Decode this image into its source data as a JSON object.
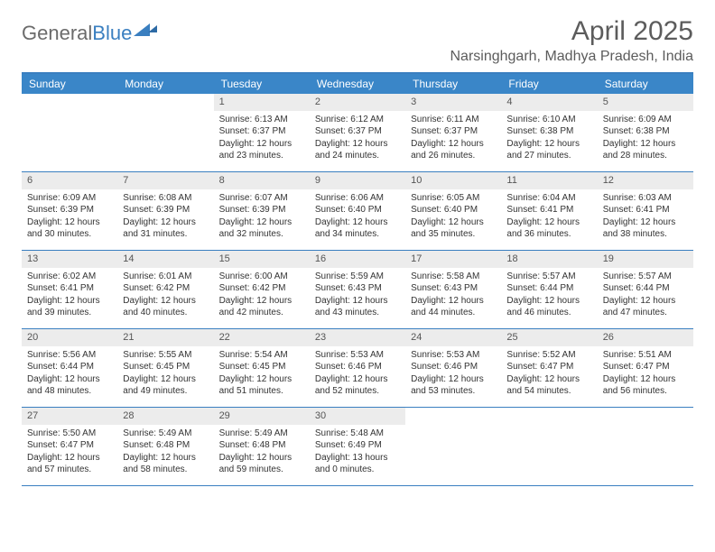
{
  "logo": {
    "text1": "General",
    "text2": "Blue"
  },
  "title": "April 2025",
  "location": "Narsinghgarh, Madhya Pradesh, India",
  "colors": {
    "header_bg": "#3a86c8",
    "border": "#3a7fc0",
    "daynum_bg": "#ececec"
  },
  "weekdays": [
    "Sunday",
    "Monday",
    "Tuesday",
    "Wednesday",
    "Thursday",
    "Friday",
    "Saturday"
  ],
  "weeks": [
    [
      null,
      null,
      {
        "n": "1",
        "sr": "6:13 AM",
        "ss": "6:37 PM",
        "dl": "12 hours and 23 minutes."
      },
      {
        "n": "2",
        "sr": "6:12 AM",
        "ss": "6:37 PM",
        "dl": "12 hours and 24 minutes."
      },
      {
        "n": "3",
        "sr": "6:11 AM",
        "ss": "6:37 PM",
        "dl": "12 hours and 26 minutes."
      },
      {
        "n": "4",
        "sr": "6:10 AM",
        "ss": "6:38 PM",
        "dl": "12 hours and 27 minutes."
      },
      {
        "n": "5",
        "sr": "6:09 AM",
        "ss": "6:38 PM",
        "dl": "12 hours and 28 minutes."
      }
    ],
    [
      {
        "n": "6",
        "sr": "6:09 AM",
        "ss": "6:39 PM",
        "dl": "12 hours and 30 minutes."
      },
      {
        "n": "7",
        "sr": "6:08 AM",
        "ss": "6:39 PM",
        "dl": "12 hours and 31 minutes."
      },
      {
        "n": "8",
        "sr": "6:07 AM",
        "ss": "6:39 PM",
        "dl": "12 hours and 32 minutes."
      },
      {
        "n": "9",
        "sr": "6:06 AM",
        "ss": "6:40 PM",
        "dl": "12 hours and 34 minutes."
      },
      {
        "n": "10",
        "sr": "6:05 AM",
        "ss": "6:40 PM",
        "dl": "12 hours and 35 minutes."
      },
      {
        "n": "11",
        "sr": "6:04 AM",
        "ss": "6:41 PM",
        "dl": "12 hours and 36 minutes."
      },
      {
        "n": "12",
        "sr": "6:03 AM",
        "ss": "6:41 PM",
        "dl": "12 hours and 38 minutes."
      }
    ],
    [
      {
        "n": "13",
        "sr": "6:02 AM",
        "ss": "6:41 PM",
        "dl": "12 hours and 39 minutes."
      },
      {
        "n": "14",
        "sr": "6:01 AM",
        "ss": "6:42 PM",
        "dl": "12 hours and 40 minutes."
      },
      {
        "n": "15",
        "sr": "6:00 AM",
        "ss": "6:42 PM",
        "dl": "12 hours and 42 minutes."
      },
      {
        "n": "16",
        "sr": "5:59 AM",
        "ss": "6:43 PM",
        "dl": "12 hours and 43 minutes."
      },
      {
        "n": "17",
        "sr": "5:58 AM",
        "ss": "6:43 PM",
        "dl": "12 hours and 44 minutes."
      },
      {
        "n": "18",
        "sr": "5:57 AM",
        "ss": "6:44 PM",
        "dl": "12 hours and 46 minutes."
      },
      {
        "n": "19",
        "sr": "5:57 AM",
        "ss": "6:44 PM",
        "dl": "12 hours and 47 minutes."
      }
    ],
    [
      {
        "n": "20",
        "sr": "5:56 AM",
        "ss": "6:44 PM",
        "dl": "12 hours and 48 minutes."
      },
      {
        "n": "21",
        "sr": "5:55 AM",
        "ss": "6:45 PM",
        "dl": "12 hours and 49 minutes."
      },
      {
        "n": "22",
        "sr": "5:54 AM",
        "ss": "6:45 PM",
        "dl": "12 hours and 51 minutes."
      },
      {
        "n": "23",
        "sr": "5:53 AM",
        "ss": "6:46 PM",
        "dl": "12 hours and 52 minutes."
      },
      {
        "n": "24",
        "sr": "5:53 AM",
        "ss": "6:46 PM",
        "dl": "12 hours and 53 minutes."
      },
      {
        "n": "25",
        "sr": "5:52 AM",
        "ss": "6:47 PM",
        "dl": "12 hours and 54 minutes."
      },
      {
        "n": "26",
        "sr": "5:51 AM",
        "ss": "6:47 PM",
        "dl": "12 hours and 56 minutes."
      }
    ],
    [
      {
        "n": "27",
        "sr": "5:50 AM",
        "ss": "6:47 PM",
        "dl": "12 hours and 57 minutes."
      },
      {
        "n": "28",
        "sr": "5:49 AM",
        "ss": "6:48 PM",
        "dl": "12 hours and 58 minutes."
      },
      {
        "n": "29",
        "sr": "5:49 AM",
        "ss": "6:48 PM",
        "dl": "12 hours and 59 minutes."
      },
      {
        "n": "30",
        "sr": "5:48 AM",
        "ss": "6:49 PM",
        "dl": "13 hours and 0 minutes."
      },
      null,
      null,
      null
    ]
  ],
  "labels": {
    "sunrise": "Sunrise:",
    "sunset": "Sunset:",
    "daylight": "Daylight:"
  }
}
